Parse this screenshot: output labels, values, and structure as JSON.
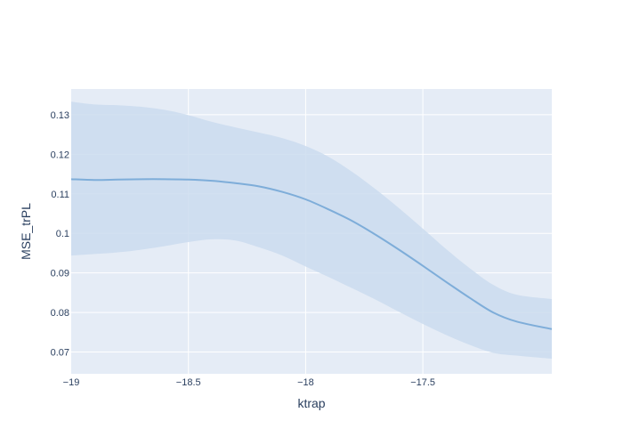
{
  "chart_data": {
    "type": "line",
    "title": "",
    "xlabel": "ktrap",
    "ylabel": "MSE_trPL",
    "xlim": [
      -19.0,
      -16.95
    ],
    "ylim": [
      0.0645,
      0.1365
    ],
    "grid": true,
    "legend": "none",
    "x_ticks": [
      {
        "value": -19.0,
        "label": "−19"
      },
      {
        "value": -18.5,
        "label": "−18.5"
      },
      {
        "value": -18.0,
        "label": "−18"
      },
      {
        "value": -17.5,
        "label": "−17.5"
      }
    ],
    "y_ticks": [
      {
        "value": 0.07,
        "label": "0.07"
      },
      {
        "value": 0.08,
        "label": "0.08"
      },
      {
        "value": 0.09,
        "label": "0.09"
      },
      {
        "value": 0.1,
        "label": "0.1"
      },
      {
        "value": 0.11,
        "label": "0.11"
      },
      {
        "value": 0.12,
        "label": "0.12"
      },
      {
        "value": 0.13,
        "label": "0.13"
      }
    ],
    "series": [
      {
        "x": [
          -19.0,
          -18.9,
          -18.8,
          -18.7,
          -18.6,
          -18.5,
          -18.4,
          -18.3,
          -18.2,
          -18.1,
          -18.0,
          -17.9,
          -17.8,
          -17.7,
          -17.6,
          -17.5,
          -17.4,
          -17.3,
          -17.2,
          -17.1,
          -16.95
        ],
        "mean": [
          0.1137,
          0.1135,
          0.1136,
          0.1137,
          0.1137,
          0.1136,
          0.1133,
          0.1127,
          0.1119,
          0.1105,
          0.1086,
          0.106,
          0.1031,
          0.0996,
          0.0958,
          0.0918,
          0.0877,
          0.0837,
          0.08,
          0.0777,
          0.0758
        ],
        "upper": [
          0.1333,
          0.1326,
          0.1324,
          0.132,
          0.1312,
          0.1299,
          0.1282,
          0.1268,
          0.1255,
          0.1241,
          0.1221,
          0.1193,
          0.1155,
          0.1111,
          0.1063,
          0.1012,
          0.096,
          0.0912,
          0.087,
          0.0845,
          0.0834
        ],
        "lower": [
          0.0944,
          0.0948,
          0.0952,
          0.0959,
          0.0968,
          0.0978,
          0.0985,
          0.0982,
          0.0965,
          0.0944,
          0.0916,
          0.0889,
          0.0861,
          0.0832,
          0.0801,
          0.0771,
          0.0743,
          0.0718,
          0.0698,
          0.0691,
          0.0683
        ]
      }
    ],
    "colors": {
      "line": "#7eadd9",
      "band": "#cbdcee",
      "plot_bg": "#e5ecf6",
      "grid": "#ffffff"
    }
  }
}
